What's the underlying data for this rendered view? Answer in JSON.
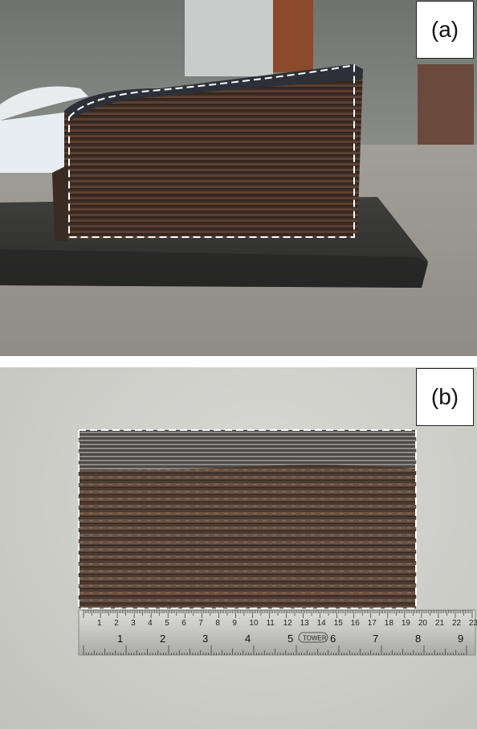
{
  "panels": [
    {
      "label": "(a)",
      "content": "photo"
    },
    {
      "label": "(b)",
      "content": "photo"
    }
  ],
  "ruler": {
    "mm_scale_numbers": [
      "1",
      "2",
      "3",
      "4",
      "5",
      "6",
      "7",
      "8",
      "9",
      "10",
      "11",
      "12",
      "13",
      "14",
      "15",
      "16",
      "17",
      "18",
      "19",
      "20",
      "21",
      "22",
      "23"
    ],
    "inch_numbers": [
      "1",
      "2",
      "3",
      "4",
      "5",
      "6",
      "7",
      "8",
      "9"
    ],
    "brand": "TOWER"
  },
  "colors": {
    "outline_dash": "#ffffff",
    "sample_dark": "#3a2d26",
    "sample_rust": "#5a3f32",
    "ruler_steel": "#c8c8c4"
  }
}
